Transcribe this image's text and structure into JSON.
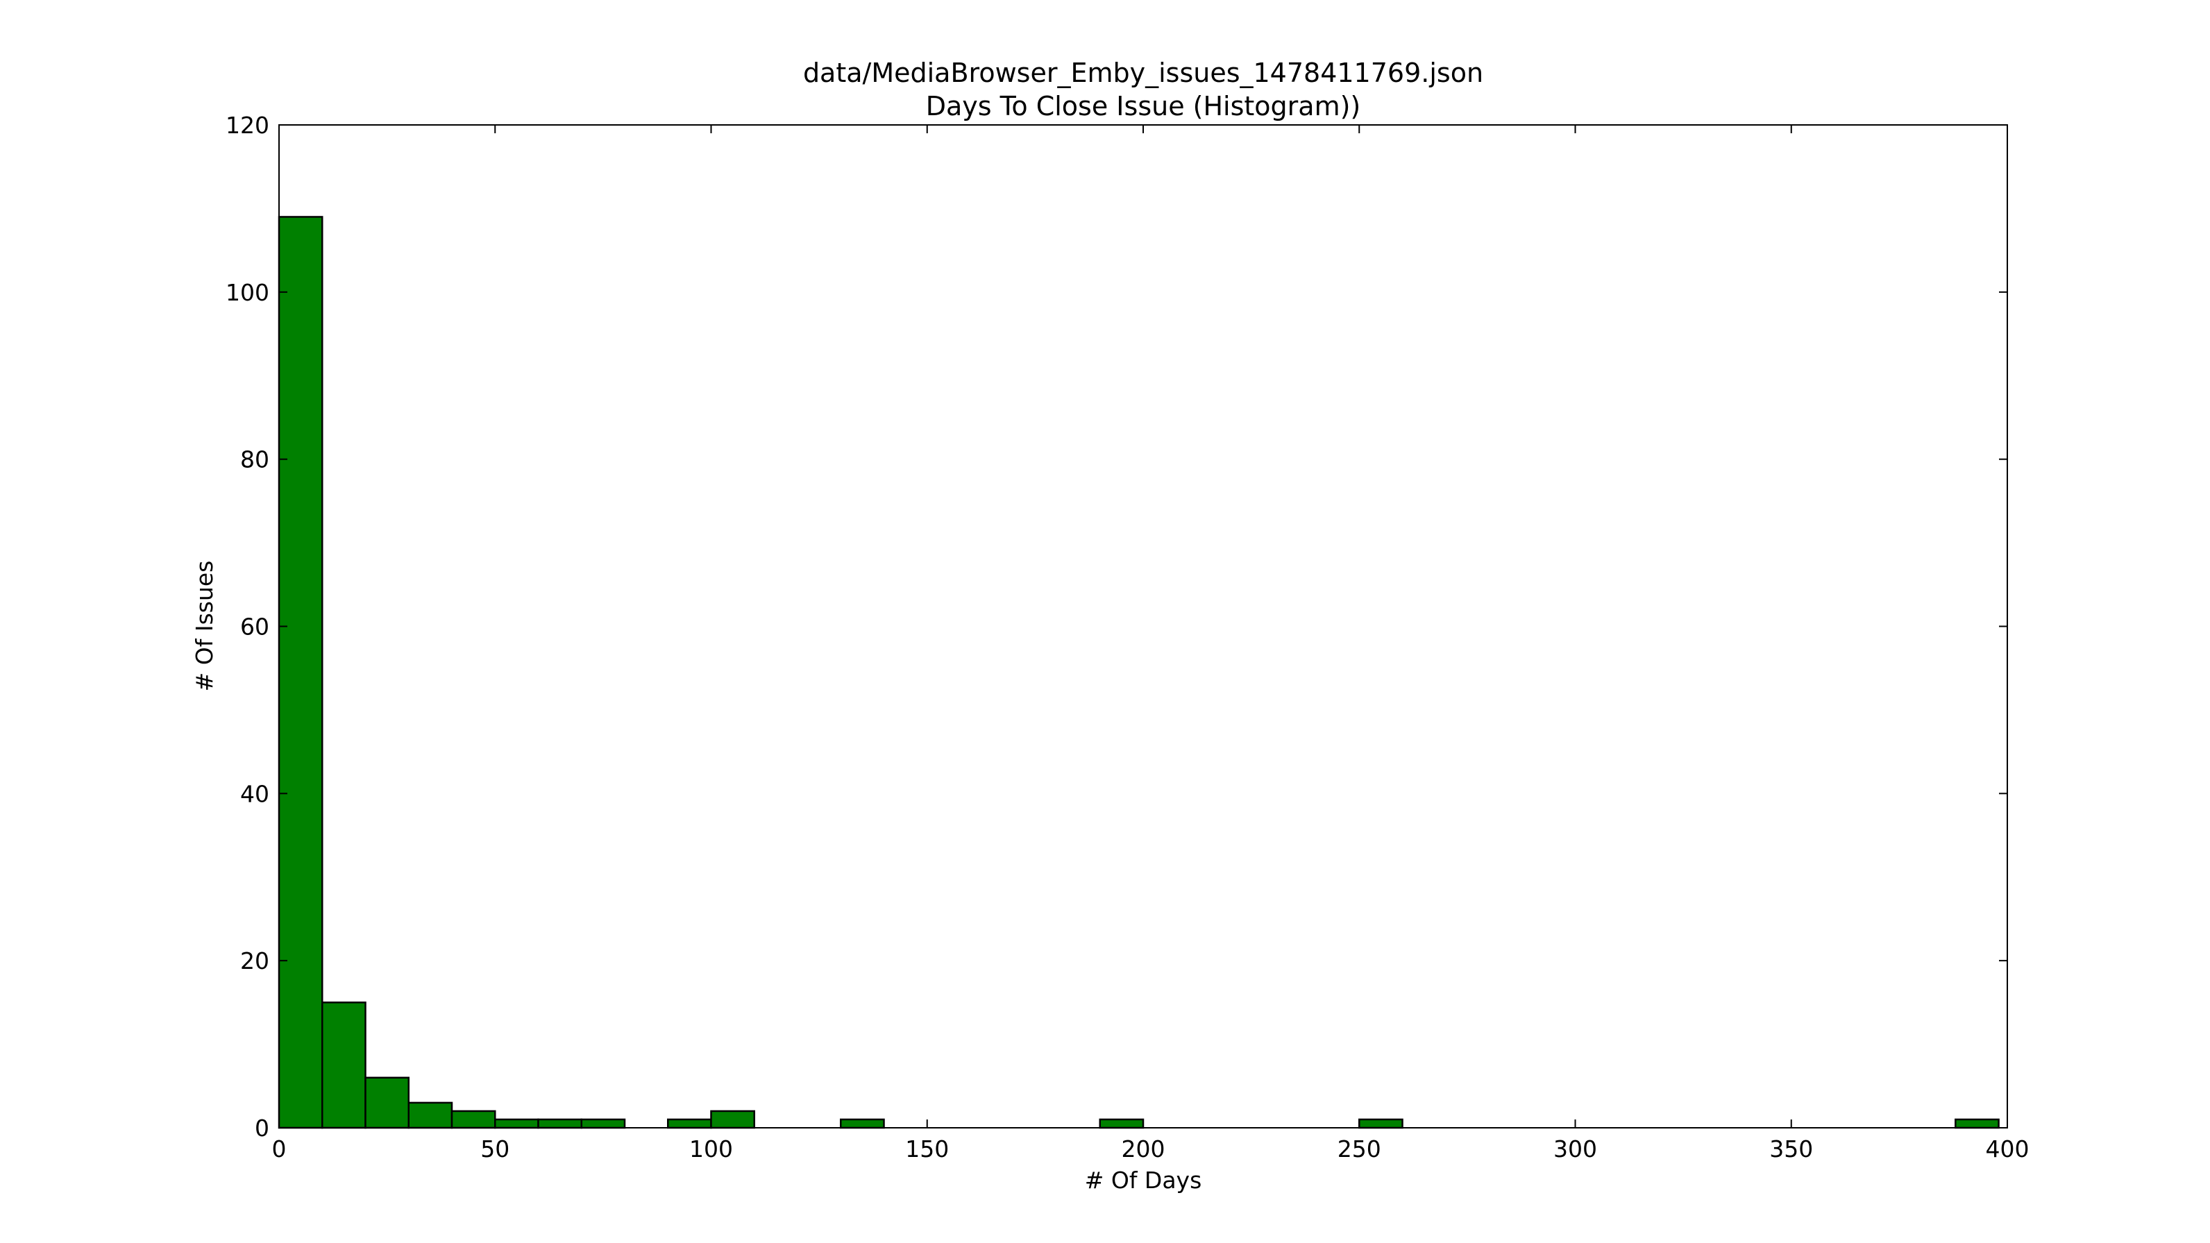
{
  "chart_data": {
    "type": "bar",
    "title": "data/MediaBrowser_Emby_issues_1478411769.json",
    "subtitle": "Days To Close Issue (Histogram))",
    "xlabel": "# Of Days",
    "ylabel": "# Of Issues",
    "xlim": [
      0,
      400
    ],
    "ylim": [
      0,
      120
    ],
    "xticks": [
      0,
      50,
      100,
      150,
      200,
      250,
      300,
      350,
      400
    ],
    "yticks": [
      0,
      20,
      40,
      60,
      80,
      100,
      120
    ],
    "grid": false,
    "legend": "none",
    "bar_color": "#008000",
    "edge_color": "#000000",
    "bins": [
      {
        "start": 0,
        "end": 10,
        "count": 109
      },
      {
        "start": 10,
        "end": 20,
        "count": 15
      },
      {
        "start": 20,
        "end": 30,
        "count": 6
      },
      {
        "start": 30,
        "end": 40,
        "count": 3
      },
      {
        "start": 40,
        "end": 50,
        "count": 2
      },
      {
        "start": 50,
        "end": 60,
        "count": 1
      },
      {
        "start": 60,
        "end": 70,
        "count": 1
      },
      {
        "start": 70,
        "end": 80,
        "count": 1
      },
      {
        "start": 90,
        "end": 100,
        "count": 1
      },
      {
        "start": 100,
        "end": 110,
        "count": 2
      },
      {
        "start": 130,
        "end": 140,
        "count": 1
      },
      {
        "start": 190,
        "end": 200,
        "count": 1
      },
      {
        "start": 250,
        "end": 260,
        "count": 1
      },
      {
        "start": 388,
        "end": 398,
        "count": 1
      }
    ]
  }
}
